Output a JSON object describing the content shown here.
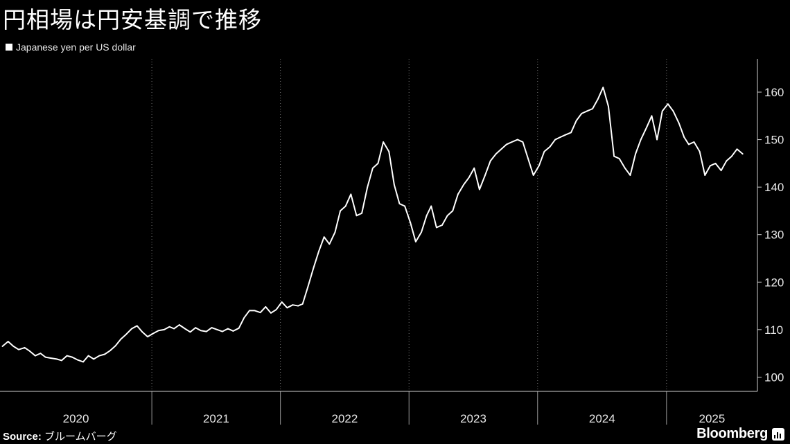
{
  "title": "円相場は円安基調で推移",
  "legend": {
    "label": "Japanese yen per US dollar",
    "color": "#ffffff"
  },
  "source": {
    "label": "Source:",
    "text": "ブルームバーグ"
  },
  "brand": "Bloomberg",
  "chart_data": {
    "type": "line",
    "title": "円相場は円安基調で推移",
    "series": [
      {
        "name": "Japanese yen per US dollar",
        "color": "#ffffff",
        "points": [
          [
            "2019-11-04",
            106.5
          ],
          [
            "2019-11-20",
            107.5
          ],
          [
            "2019-12-05",
            106.5
          ],
          [
            "2019-12-20",
            105.8
          ],
          [
            "2020-01-06",
            106.2
          ],
          [
            "2020-01-20",
            105.5
          ],
          [
            "2020-02-05",
            104.5
          ],
          [
            "2020-02-20",
            105.0
          ],
          [
            "2020-03-05",
            104.2
          ],
          [
            "2020-03-20",
            104.0
          ],
          [
            "2020-04-06",
            103.8
          ],
          [
            "2020-04-20",
            103.5
          ],
          [
            "2020-05-05",
            104.5
          ],
          [
            "2020-05-20",
            104.2
          ],
          [
            "2020-06-05",
            103.6
          ],
          [
            "2020-06-20",
            103.2
          ],
          [
            "2020-07-05",
            104.5
          ],
          [
            "2020-07-20",
            103.8
          ],
          [
            "2020-08-05",
            104.5
          ],
          [
            "2020-08-20",
            104.8
          ],
          [
            "2020-09-05",
            105.6
          ],
          [
            "2020-09-20",
            106.6
          ],
          [
            "2020-10-05",
            108.0
          ],
          [
            "2020-10-20",
            109.0
          ],
          [
            "2020-11-05",
            110.2
          ],
          [
            "2020-11-20",
            110.8
          ],
          [
            "2020-12-05",
            109.5
          ],
          [
            "2020-12-20",
            108.5
          ],
          [
            "2021-01-05",
            109.2
          ],
          [
            "2021-01-20",
            109.8
          ],
          [
            "2021-02-05",
            110.0
          ],
          [
            "2021-02-20",
            110.6
          ],
          [
            "2021-03-05",
            110.2
          ],
          [
            "2021-03-20",
            111.0
          ],
          [
            "2021-04-05",
            110.2
          ],
          [
            "2021-04-20",
            109.5
          ],
          [
            "2021-05-05",
            110.4
          ],
          [
            "2021-05-20",
            109.8
          ],
          [
            "2021-06-05",
            109.6
          ],
          [
            "2021-06-20",
            110.4
          ],
          [
            "2021-07-05",
            110.0
          ],
          [
            "2021-07-20",
            109.6
          ],
          [
            "2021-08-05",
            110.2
          ],
          [
            "2021-08-20",
            109.7
          ],
          [
            "2021-09-05",
            110.3
          ],
          [
            "2021-09-20",
            112.5
          ],
          [
            "2021-10-05",
            114.0
          ],
          [
            "2021-10-20",
            114.0
          ],
          [
            "2021-11-05",
            113.6
          ],
          [
            "2021-11-20",
            114.8
          ],
          [
            "2021-12-05",
            113.5
          ],
          [
            "2021-12-20",
            114.2
          ],
          [
            "2022-01-05",
            115.8
          ],
          [
            "2022-01-20",
            114.6
          ],
          [
            "2022-02-05",
            115.2
          ],
          [
            "2022-02-20",
            115.0
          ],
          [
            "2022-03-05",
            115.4
          ],
          [
            "2022-03-20",
            119.0
          ],
          [
            "2022-04-05",
            123.0
          ],
          [
            "2022-04-20",
            126.5
          ],
          [
            "2022-05-05",
            129.5
          ],
          [
            "2022-05-20",
            128.0
          ],
          [
            "2022-06-05",
            130.5
          ],
          [
            "2022-06-20",
            135.0
          ],
          [
            "2022-07-05",
            136.0
          ],
          [
            "2022-07-20",
            138.5
          ],
          [
            "2022-08-05",
            134.0
          ],
          [
            "2022-08-20",
            134.5
          ],
          [
            "2022-09-05",
            140.0
          ],
          [
            "2022-09-20",
            144.0
          ],
          [
            "2022-10-05",
            145.0
          ],
          [
            "2022-10-20",
            149.5
          ],
          [
            "2022-11-05",
            147.5
          ],
          [
            "2022-11-20",
            140.5
          ],
          [
            "2022-12-05",
            136.5
          ],
          [
            "2022-12-20",
            136.0
          ],
          [
            "2023-01-05",
            132.5
          ],
          [
            "2023-01-20",
            128.5
          ],
          [
            "2023-02-05",
            130.5
          ],
          [
            "2023-02-20",
            134.0
          ],
          [
            "2023-03-05",
            136.0
          ],
          [
            "2023-03-20",
            131.5
          ],
          [
            "2023-04-05",
            132.0
          ],
          [
            "2023-04-20",
            134.0
          ],
          [
            "2023-05-05",
            135.0
          ],
          [
            "2023-05-20",
            138.5
          ],
          [
            "2023-06-05",
            140.5
          ],
          [
            "2023-06-20",
            142.0
          ],
          [
            "2023-07-05",
            144.0
          ],
          [
            "2023-07-20",
            139.5
          ],
          [
            "2023-08-05",
            142.5
          ],
          [
            "2023-08-20",
            145.5
          ],
          [
            "2023-09-05",
            147.0
          ],
          [
            "2023-09-20",
            148.0
          ],
          [
            "2023-10-05",
            149.0
          ],
          [
            "2023-10-20",
            149.5
          ],
          [
            "2023-11-05",
            150.0
          ],
          [
            "2023-11-20",
            149.5
          ],
          [
            "2023-12-05",
            146.0
          ],
          [
            "2023-12-20",
            142.5
          ],
          [
            "2024-01-05",
            144.5
          ],
          [
            "2024-01-20",
            147.5
          ],
          [
            "2024-02-05",
            148.5
          ],
          [
            "2024-02-20",
            150.0
          ],
          [
            "2024-03-05",
            150.5
          ],
          [
            "2024-03-20",
            151.0
          ],
          [
            "2024-04-05",
            151.5
          ],
          [
            "2024-04-20",
            154.0
          ],
          [
            "2024-05-05",
            155.5
          ],
          [
            "2024-05-20",
            156.0
          ],
          [
            "2024-06-05",
            156.5
          ],
          [
            "2024-06-20",
            158.5
          ],
          [
            "2024-07-05",
            161.0
          ],
          [
            "2024-07-20",
            157.0
          ],
          [
            "2024-08-05",
            146.5
          ],
          [
            "2024-08-20",
            146.0
          ],
          [
            "2024-09-05",
            144.0
          ],
          [
            "2024-09-20",
            142.5
          ],
          [
            "2024-10-05",
            147.0
          ],
          [
            "2024-10-20",
            150.0
          ],
          [
            "2024-11-05",
            152.5
          ],
          [
            "2024-11-20",
            155.0
          ],
          [
            "2024-12-05",
            150.0
          ],
          [
            "2024-12-20",
            156.0
          ],
          [
            "2025-01-05",
            157.5
          ],
          [
            "2025-01-20",
            156.0
          ],
          [
            "2025-02-05",
            153.5
          ],
          [
            "2025-02-20",
            150.5
          ],
          [
            "2025-03-05",
            149.0
          ],
          [
            "2025-03-20",
            149.5
          ],
          [
            "2025-04-05",
            147.5
          ],
          [
            "2025-04-20",
            142.5
          ],
          [
            "2025-05-05",
            144.5
          ],
          [
            "2025-05-20",
            145.0
          ],
          [
            "2025-06-05",
            143.5
          ],
          [
            "2025-06-20",
            145.5
          ],
          [
            "2025-07-05",
            146.5
          ],
          [
            "2025-07-20",
            148.0
          ],
          [
            "2025-08-05",
            147.0
          ]
        ]
      }
    ],
    "y_axis": {
      "min": 97,
      "max": 167,
      "ticks": [
        100,
        110,
        120,
        130,
        140,
        150,
        160
      ],
      "position": "right"
    },
    "x_axis": {
      "min": "2019-10-28",
      "max": "2025-09-16",
      "year_boundaries": [
        "2021-01-01",
        "2022-01-01",
        "2023-01-01",
        "2024-01-01",
        "2025-01-01"
      ],
      "labels": [
        "2020",
        "2021",
        "2022",
        "2023",
        "2024",
        "2025"
      ]
    },
    "grid": "vertical-dotted",
    "legend": "top-left"
  }
}
